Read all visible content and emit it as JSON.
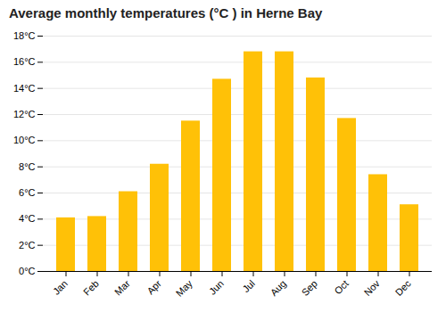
{
  "chart_data": {
    "type": "bar",
    "title": "Average monthly temperatures (°C ) in Herne Bay",
    "categories": [
      "Jan",
      "Feb",
      "Mar",
      "Apr",
      "May",
      "Jun",
      "Jul",
      "Aug",
      "Sep",
      "Oct",
      "Nov",
      "Dec"
    ],
    "values": [
      4.1,
      4.2,
      6.1,
      8.2,
      11.5,
      14.7,
      16.8,
      16.8,
      14.8,
      11.7,
      7.4,
      5.1
    ],
    "color": "#FFC107",
    "ylim": [
      0,
      18
    ],
    "yticks": [
      {
        "value": 0,
        "label": "0°C"
      },
      {
        "value": 2,
        "label": "2°C"
      },
      {
        "value": 4,
        "label": "4°C"
      },
      {
        "value": 6,
        "label": "6°C"
      },
      {
        "value": 8,
        "label": "8°C"
      },
      {
        "value": 10,
        "label": "10°C"
      },
      {
        "value": 12,
        "label": "12°C"
      },
      {
        "value": 14,
        "label": "14°C"
      },
      {
        "value": 16,
        "label": "16°C"
      },
      {
        "value": 18,
        "label": "18°C"
      }
    ],
    "grid": true
  }
}
